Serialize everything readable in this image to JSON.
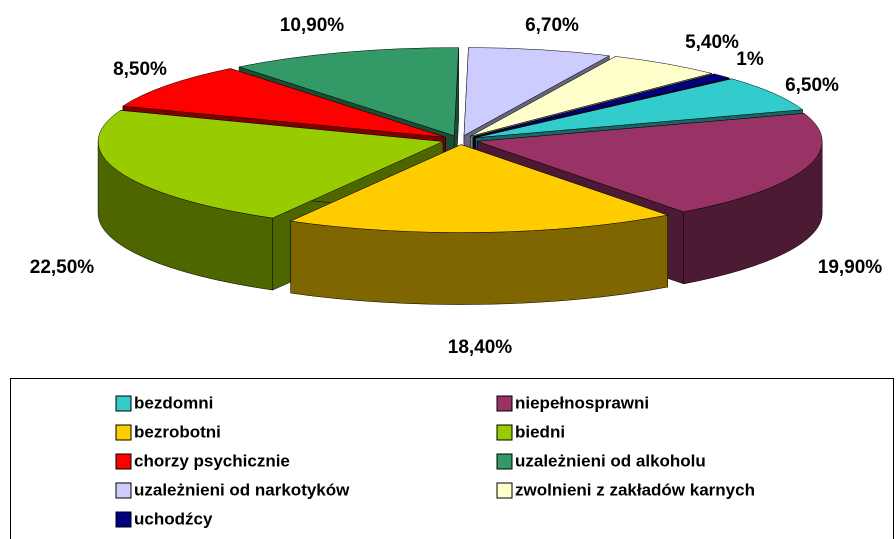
{
  "chart_data": {
    "type": "pie",
    "categories": [
      "bezdomni",
      "niepełnosprawni",
      "bezrobotni",
      "biedni",
      "chorzy psychicznie",
      "uzależnieni od alkoholu",
      "uzależnieni od narkotyków",
      "zwolnieni z zakładów karnych",
      "uchodźcy"
    ],
    "values": [
      6.5,
      19.9,
      18.4,
      22.5,
      8.5,
      10.9,
      6.7,
      5.4,
      1
    ],
    "value_labels": [
      "6,50%",
      "19,90%",
      "18,40%",
      "22,50%",
      "8,50%",
      "10,90%",
      "6,70%",
      "5,40%",
      "1%"
    ],
    "colors": [
      "#33cccc",
      "#993366",
      "#ffcc00",
      "#99cc00",
      "#ff0000",
      "#339966",
      "#ccccff",
      "#ffffcc",
      "#000080"
    ],
    "legend": "bottom"
  }
}
